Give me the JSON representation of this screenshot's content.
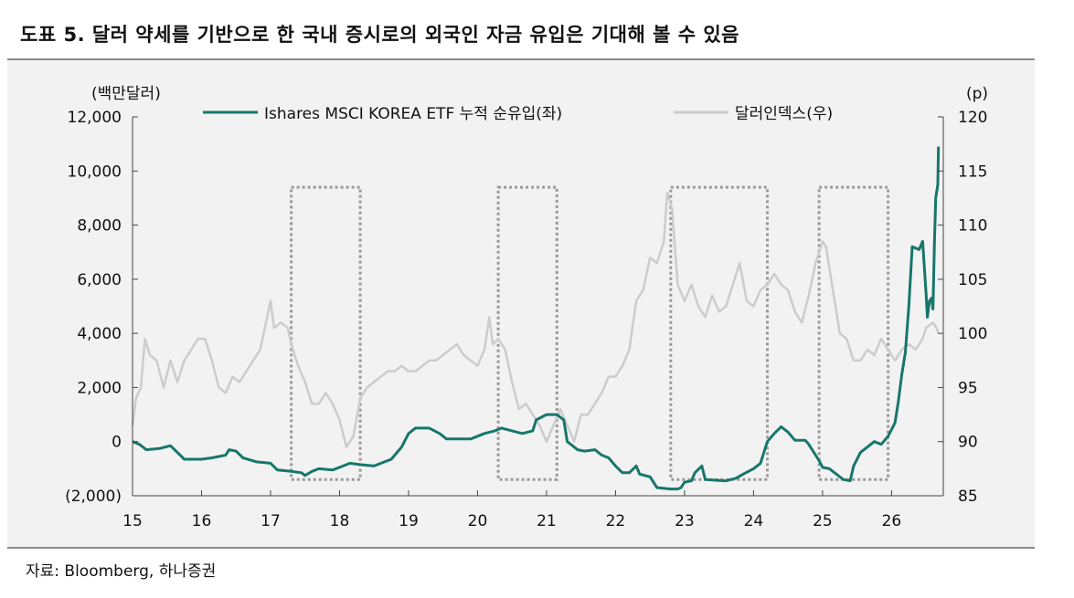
{
  "header": {
    "title": "도표 5. 달러 약세를 기반으로 한 국내 증시로의 외국인 자금 유입은 기대해 볼 수 있음"
  },
  "footer": {
    "source": "자료: Bloomberg, 하나증권"
  },
  "chart_data": {
    "type": "line",
    "left_unit": "(백만달러)",
    "right_unit": "(p)",
    "x_ticks": [
      "15",
      "16",
      "17",
      "18",
      "19",
      "20",
      "21",
      "22",
      "23",
      "24",
      "25",
      "26"
    ],
    "left_axis": {
      "ylim": [
        -2000,
        12000
      ],
      "ticks": [
        -2000,
        0,
        2000,
        4000,
        6000,
        8000,
        10000,
        12000
      ],
      "tick_labels": [
        "(2,000)",
        "0",
        "2,000",
        "4,000",
        "6,000",
        "8,000",
        "10,000",
        "12,000"
      ]
    },
    "right_axis": {
      "ylim": [
        85,
        120
      ],
      "ticks": [
        85,
        90,
        95,
        100,
        105,
        110,
        115,
        120
      ],
      "tick_labels": [
        "85",
        "90",
        "95",
        "100",
        "105",
        "110",
        "115",
        "120"
      ]
    },
    "xlim": [
      2015,
      2026.75
    ],
    "series": [
      {
        "name": "Ishares MSCI KOREA ETF 누적 순유입(좌)",
        "axis": "left",
        "color": "#17766b",
        "points": [
          [
            2015.0,
            0
          ],
          [
            2015.1,
            -100
          ],
          [
            2015.2,
            -300
          ],
          [
            2015.4,
            -250
          ],
          [
            2015.55,
            -150
          ],
          [
            2015.65,
            -400
          ],
          [
            2015.75,
            -650
          ],
          [
            2016.0,
            -650
          ],
          [
            2016.15,
            -600
          ],
          [
            2016.25,
            -550
          ],
          [
            2016.35,
            -500
          ],
          [
            2016.4,
            -300
          ],
          [
            2016.5,
            -350
          ],
          [
            2016.6,
            -600
          ],
          [
            2016.8,
            -750
          ],
          [
            2017.0,
            -800
          ],
          [
            2017.1,
            -1050
          ],
          [
            2017.3,
            -1100
          ],
          [
            2017.45,
            -1150
          ],
          [
            2017.5,
            -1250
          ],
          [
            2017.6,
            -1100
          ],
          [
            2017.7,
            -1000
          ],
          [
            2017.9,
            -1050
          ],
          [
            2018.0,
            -950
          ],
          [
            2018.15,
            -800
          ],
          [
            2018.3,
            -850
          ],
          [
            2018.5,
            -900
          ],
          [
            2018.6,
            -800
          ],
          [
            2018.75,
            -650
          ],
          [
            2018.9,
            -200
          ],
          [
            2019.0,
            300
          ],
          [
            2019.1,
            500
          ],
          [
            2019.3,
            500
          ],
          [
            2019.45,
            300
          ],
          [
            2019.55,
            100
          ],
          [
            2019.9,
            100
          ],
          [
            2020.1,
            300
          ],
          [
            2020.25,
            400
          ],
          [
            2020.35,
            500
          ],
          [
            2020.5,
            400
          ],
          [
            2020.65,
            300
          ],
          [
            2020.8,
            400
          ],
          [
            2020.85,
            800
          ],
          [
            2021.0,
            1000
          ],
          [
            2021.15,
            1000
          ],
          [
            2021.25,
            800
          ],
          [
            2021.3,
            0
          ],
          [
            2021.45,
            -300
          ],
          [
            2021.55,
            -350
          ],
          [
            2021.7,
            -300
          ],
          [
            2021.8,
            -500
          ],
          [
            2021.9,
            -600
          ],
          [
            2022.0,
            -900
          ],
          [
            2022.1,
            -1150
          ],
          [
            2022.2,
            -1150
          ],
          [
            2022.3,
            -900
          ],
          [
            2022.35,
            -1200
          ],
          [
            2022.5,
            -1300
          ],
          [
            2022.6,
            -1700
          ],
          [
            2022.8,
            -1750
          ],
          [
            2022.9,
            -1750
          ],
          [
            2022.95,
            -1700
          ],
          [
            2023.0,
            -1500
          ],
          [
            2023.1,
            -1450
          ],
          [
            2023.15,
            -1150
          ],
          [
            2023.25,
            -900
          ],
          [
            2023.3,
            -1400
          ],
          [
            2023.6,
            -1450
          ],
          [
            2023.75,
            -1350
          ],
          [
            2023.85,
            -1200
          ],
          [
            2024.0,
            -1000
          ],
          [
            2024.1,
            -800
          ],
          [
            2024.2,
            0
          ],
          [
            2024.3,
            300
          ],
          [
            2024.4,
            550
          ],
          [
            2024.5,
            350
          ],
          [
            2024.6,
            50
          ],
          [
            2024.75,
            50
          ],
          [
            2024.8,
            -100
          ],
          [
            2024.95,
            -700
          ],
          [
            2025.0,
            -950
          ],
          [
            2025.1,
            -1000
          ],
          [
            2025.2,
            -1200
          ],
          [
            2025.3,
            -1400
          ],
          [
            2025.4,
            -1450
          ],
          [
            2025.45,
            -900
          ],
          [
            2025.55,
            -400
          ],
          [
            2025.7,
            -100
          ],
          [
            2025.75,
            0
          ],
          [
            2025.85,
            -100
          ],
          [
            2025.95,
            200
          ],
          [
            2026.05,
            700
          ],
          [
            2026.1,
            1500
          ],
          [
            2026.15,
            2500
          ],
          [
            2026.2,
            3300
          ],
          [
            2026.25,
            5000
          ],
          [
            2026.3,
            7200
          ],
          [
            2026.4,
            7100
          ],
          [
            2026.45,
            7400
          ],
          [
            2026.5,
            5500
          ],
          [
            2026.52,
            4600
          ],
          [
            2026.55,
            5200
          ],
          [
            2026.58,
            5300
          ],
          [
            2026.6,
            4900
          ],
          [
            2026.62,
            7200
          ],
          [
            2026.64,
            9000
          ],
          [
            2026.67,
            9500
          ],
          [
            2026.68,
            10900
          ]
        ]
      },
      {
        "name": "달러인덱스(우)",
        "axis": "right",
        "color": "#cccccc",
        "points": [
          [
            2015.0,
            91.5
          ],
          [
            2015.05,
            94
          ],
          [
            2015.12,
            95
          ],
          [
            2015.18,
            99.5
          ],
          [
            2015.25,
            98
          ],
          [
            2015.35,
            97.5
          ],
          [
            2015.45,
            95
          ],
          [
            2015.55,
            97.5
          ],
          [
            2015.65,
            95.5
          ],
          [
            2015.75,
            97.5
          ],
          [
            2015.85,
            98.5
          ],
          [
            2015.95,
            99.5
          ],
          [
            2016.05,
            99.5
          ],
          [
            2016.15,
            97.5
          ],
          [
            2016.25,
            95
          ],
          [
            2016.35,
            94.5
          ],
          [
            2016.45,
            96
          ],
          [
            2016.55,
            95.5
          ],
          [
            2016.65,
            96.5
          ],
          [
            2016.75,
            97.5
          ],
          [
            2016.85,
            98.5
          ],
          [
            2016.95,
            101.5
          ],
          [
            2017.0,
            103
          ],
          [
            2017.05,
            100.5
          ],
          [
            2017.15,
            101
          ],
          [
            2017.25,
            100.5
          ],
          [
            2017.3,
            99
          ],
          [
            2017.4,
            97
          ],
          [
            2017.5,
            95.5
          ],
          [
            2017.6,
            93.5
          ],
          [
            2017.7,
            93.5
          ],
          [
            2017.8,
            94.5
          ],
          [
            2017.9,
            93.5
          ],
          [
            2018.0,
            92
          ],
          [
            2018.1,
            89.5
          ],
          [
            2018.2,
            90.5
          ],
          [
            2018.3,
            94
          ],
          [
            2018.4,
            95
          ],
          [
            2018.5,
            95.5
          ],
          [
            2018.6,
            96
          ],
          [
            2018.7,
            96.5
          ],
          [
            2018.8,
            96.5
          ],
          [
            2018.9,
            97
          ],
          [
            2019.0,
            96.5
          ],
          [
            2019.1,
            96.5
          ],
          [
            2019.2,
            97
          ],
          [
            2019.3,
            97.5
          ],
          [
            2019.4,
            97.5
          ],
          [
            2019.5,
            98
          ],
          [
            2019.6,
            98.5
          ],
          [
            2019.7,
            99
          ],
          [
            2019.8,
            98
          ],
          [
            2019.9,
            97.5
          ],
          [
            2020.0,
            97
          ],
          [
            2020.1,
            98.5
          ],
          [
            2020.17,
            101.5
          ],
          [
            2020.22,
            99
          ],
          [
            2020.3,
            99.5
          ],
          [
            2020.4,
            98.5
          ],
          [
            2020.5,
            95.5
          ],
          [
            2020.6,
            93
          ],
          [
            2020.7,
            93.5
          ],
          [
            2020.8,
            92.5
          ],
          [
            2020.9,
            91.5
          ],
          [
            2021.0,
            90
          ],
          [
            2021.1,
            91.5
          ],
          [
            2021.2,
            93
          ],
          [
            2021.3,
            91.5
          ],
          [
            2021.4,
            90
          ],
          [
            2021.5,
            92.5
          ],
          [
            2021.6,
            92.5
          ],
          [
            2021.7,
            93.5
          ],
          [
            2021.8,
            94.5
          ],
          [
            2021.9,
            96
          ],
          [
            2022.0,
            96
          ],
          [
            2022.1,
            97
          ],
          [
            2022.2,
            98.5
          ],
          [
            2022.3,
            103
          ],
          [
            2022.4,
            104
          ],
          [
            2022.5,
            107
          ],
          [
            2022.6,
            106.5
          ],
          [
            2022.7,
            108.5
          ],
          [
            2022.75,
            113
          ],
          [
            2022.82,
            111.5
          ],
          [
            2022.9,
            104.5
          ],
          [
            2023.0,
            103
          ],
          [
            2023.1,
            104.5
          ],
          [
            2023.2,
            102.5
          ],
          [
            2023.3,
            101.5
          ],
          [
            2023.4,
            103.5
          ],
          [
            2023.5,
            102
          ],
          [
            2023.6,
            102.5
          ],
          [
            2023.7,
            104.5
          ],
          [
            2023.8,
            106.5
          ],
          [
            2023.9,
            103
          ],
          [
            2024.0,
            102.5
          ],
          [
            2024.1,
            104
          ],
          [
            2024.2,
            104.5
          ],
          [
            2024.3,
            105.5
          ],
          [
            2024.4,
            104.5
          ],
          [
            2024.5,
            104
          ],
          [
            2024.6,
            102
          ],
          [
            2024.7,
            101
          ],
          [
            2024.8,
            103.5
          ],
          [
            2024.9,
            106.5
          ],
          [
            2025.0,
            108.5
          ],
          [
            2025.05,
            108
          ],
          [
            2025.15,
            104
          ],
          [
            2025.25,
            100
          ],
          [
            2025.35,
            99.5
          ],
          [
            2025.45,
            97.5
          ],
          [
            2025.55,
            97.5
          ],
          [
            2025.65,
            98.5
          ],
          [
            2025.75,
            98
          ],
          [
            2025.85,
            99.5
          ],
          [
            2025.95,
            98.5
          ],
          [
            2026.05,
            97.5
          ],
          [
            2026.15,
            98.5
          ],
          [
            2026.25,
            99
          ],
          [
            2026.35,
            98.5
          ],
          [
            2026.45,
            99.5
          ],
          [
            2026.5,
            100.5
          ],
          [
            2026.6,
            101
          ],
          [
            2026.65,
            100.5
          ],
          [
            2026.68,
            100
          ]
        ]
      }
    ],
    "highlight_boxes": [
      {
        "x": [
          2017.3,
          2018.3
        ],
        "y_right": [
          86.5,
          113.5
        ]
      },
      {
        "x": [
          2020.3,
          2021.15
        ],
        "y_right": [
          86.5,
          113.5
        ]
      },
      {
        "x": [
          2022.8,
          2024.2
        ],
        "y_right": [
          86.5,
          113.5
        ]
      },
      {
        "x": [
          2024.95,
          2025.95
        ],
        "y_right": [
          86.5,
          113.5
        ]
      }
    ]
  }
}
